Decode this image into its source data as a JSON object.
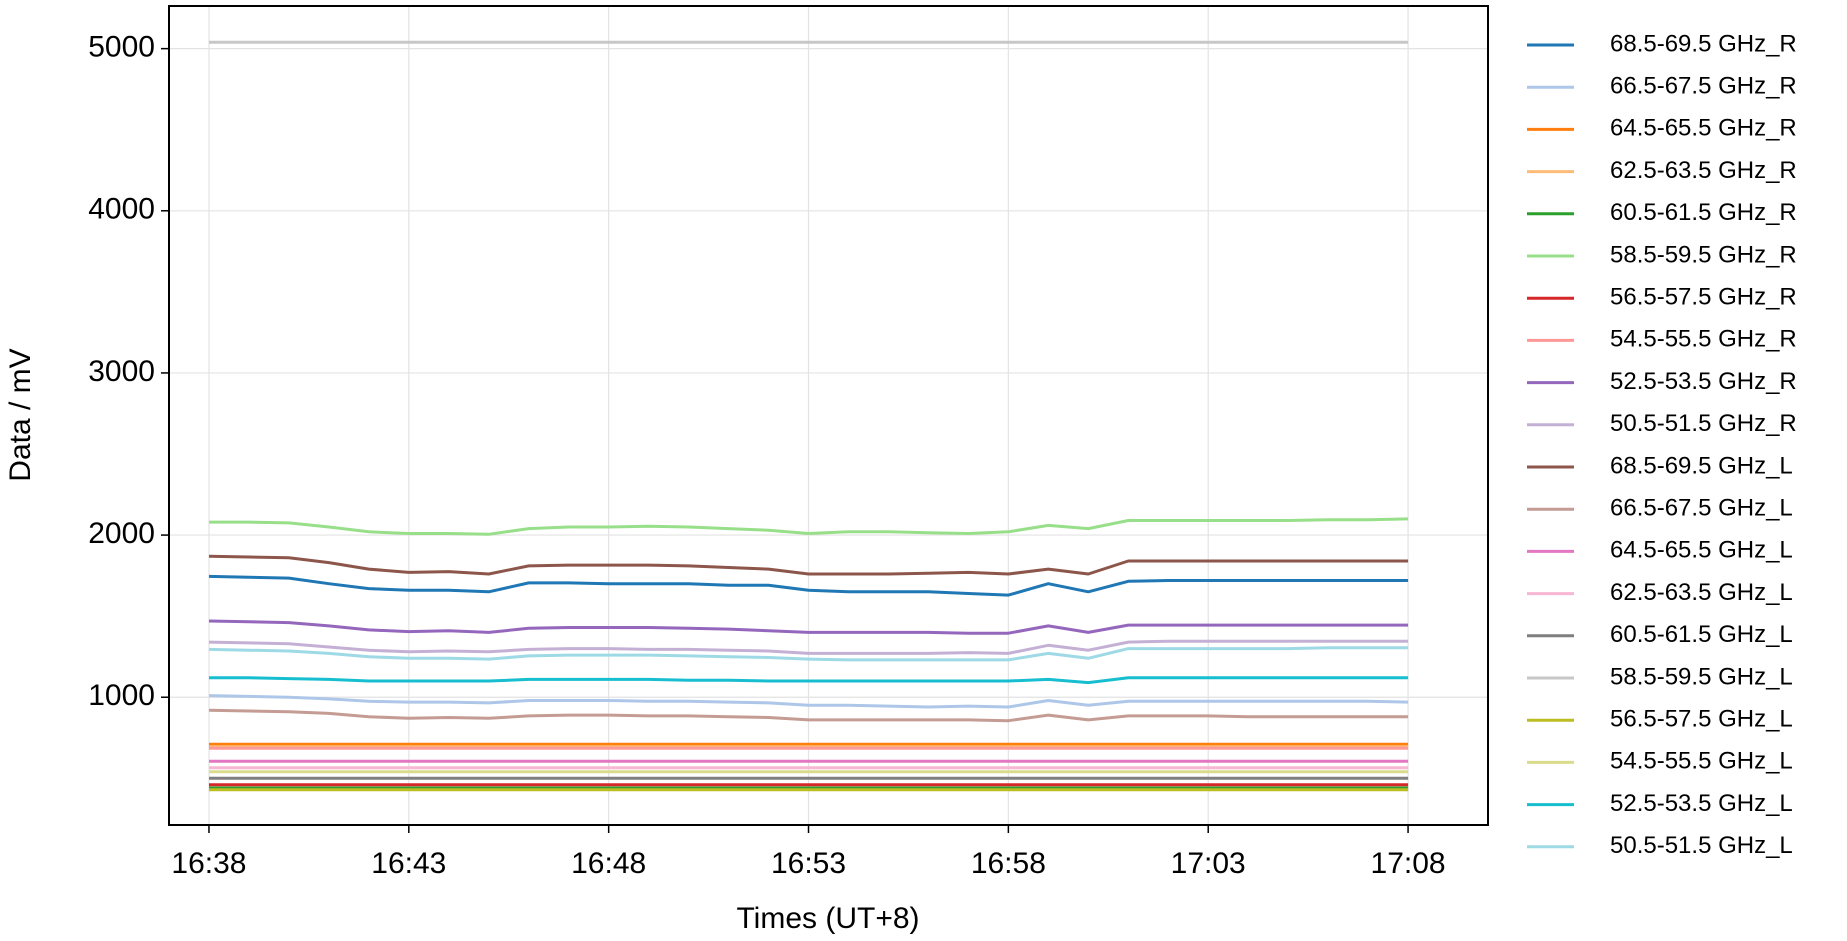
{
  "chart_data": {
    "type": "line",
    "x_label": "Times (UT+8)",
    "y_label": "Data / mV",
    "x": [
      "16:38",
      "16:39",
      "16:40",
      "16:41",
      "16:42",
      "16:43",
      "16:44",
      "16:45",
      "16:46",
      "16:47",
      "16:48",
      "16:49",
      "16:50",
      "16:51",
      "16:52",
      "16:53",
      "16:54",
      "16:55",
      "16:56",
      "16:57",
      "16:58",
      "16:59",
      "17:00",
      "17:01",
      "17:02",
      "17:03",
      "17:04",
      "17:05",
      "17:06",
      "17:07",
      "17:08"
    ],
    "xlim": [
      "16:37",
      "17:10"
    ],
    "xticks": [
      "16:38",
      "16:43",
      "16:48",
      "16:53",
      "16:58",
      "17:03",
      "17:08"
    ],
    "ylim": [
      212,
      5263
    ],
    "yticks": [
      1000,
      2000,
      3000,
      4000,
      5000
    ],
    "grid": true,
    "series": [
      {
        "name": "68.5-69.5 GHz_R",
        "color": "#1f77b4",
        "values": [
          1745,
          1740,
          1735,
          1700,
          1670,
          1660,
          1660,
          1650,
          1705,
          1705,
          1700,
          1700,
          1700,
          1690,
          1690,
          1660,
          1650,
          1650,
          1650,
          1640,
          1630,
          1700,
          1650,
          1715,
          1720,
          1720,
          1720,
          1720,
          1720,
          1720,
          1720
        ]
      },
      {
        "name": "66.5-67.5 GHz_R",
        "color": "#aec7e8",
        "values": [
          1010,
          1005,
          1000,
          990,
          975,
          970,
          970,
          965,
          980,
          980,
          980,
          975,
          975,
          970,
          965,
          950,
          950,
          945,
          940,
          945,
          940,
          980,
          950,
          975,
          975,
          975,
          975,
          975,
          975,
          975,
          970
        ]
      },
      {
        "name": "64.5-65.5 GHz_R",
        "color": "#ff7f0e",
        "values": [
          710,
          710,
          710,
          710,
          710,
          710,
          710,
          710,
          710,
          710,
          710,
          710,
          710,
          710,
          710,
          710,
          710,
          710,
          710,
          710,
          710,
          710,
          710,
          710,
          710,
          710,
          710,
          710,
          710,
          710,
          710
        ]
      },
      {
        "name": "62.5-63.5 GHz_R",
        "color": "#ffbb78",
        "values": [
          695,
          695,
          695,
          695,
          695,
          695,
          695,
          695,
          695,
          695,
          695,
          695,
          695,
          695,
          695,
          695,
          695,
          695,
          695,
          695,
          695,
          695,
          695,
          695,
          695,
          695,
          695,
          695,
          695,
          695,
          695
        ]
      },
      {
        "name": "60.5-61.5 GHz_R",
        "color": "#2ca02c",
        "values": [
          440,
          440,
          440,
          440,
          440,
          440,
          440,
          440,
          440,
          440,
          440,
          440,
          440,
          440,
          440,
          440,
          440,
          440,
          440,
          440,
          440,
          440,
          440,
          440,
          440,
          440,
          440,
          440,
          440,
          440,
          440
        ]
      },
      {
        "name": "58.5-59.5 GHz_R",
        "color": "#98df8a",
        "values": [
          2080,
          2080,
          2075,
          2050,
          2020,
          2010,
          2010,
          2005,
          2040,
          2050,
          2050,
          2055,
          2050,
          2040,
          2030,
          2010,
          2020,
          2020,
          2015,
          2010,
          2020,
          2060,
          2040,
          2090,
          2090,
          2090,
          2090,
          2090,
          2095,
          2095,
          2100
        ]
      },
      {
        "name": "56.5-57.5 GHz_R",
        "color": "#d62728",
        "values": [
          460,
          460,
          460,
          460,
          460,
          460,
          460,
          460,
          460,
          460,
          460,
          460,
          460,
          460,
          460,
          460,
          460,
          460,
          460,
          460,
          460,
          460,
          460,
          460,
          460,
          460,
          460,
          460,
          460,
          460,
          460
        ]
      },
      {
        "name": "54.5-55.5 GHz_R",
        "color": "#ff9896",
        "values": [
          685,
          685,
          685,
          685,
          685,
          685,
          685,
          685,
          685,
          685,
          685,
          685,
          685,
          685,
          685,
          685,
          685,
          685,
          685,
          685,
          685,
          685,
          685,
          685,
          685,
          685,
          685,
          685,
          685,
          685,
          685
        ]
      },
      {
        "name": "52.5-53.5 GHz_R",
        "color": "#9467bd",
        "values": [
          1470,
          1465,
          1460,
          1440,
          1415,
          1405,
          1410,
          1400,
          1425,
          1430,
          1430,
          1430,
          1425,
          1420,
          1410,
          1400,
          1400,
          1400,
          1400,
          1395,
          1395,
          1440,
          1400,
          1445,
          1445,
          1445,
          1445,
          1445,
          1445,
          1445,
          1445
        ]
      },
      {
        "name": "50.5-51.5 GHz_R",
        "color": "#c5b0d5",
        "values": [
          1340,
          1335,
          1330,
          1310,
          1290,
          1280,
          1285,
          1280,
          1295,
          1300,
          1300,
          1295,
          1295,
          1290,
          1285,
          1270,
          1270,
          1270,
          1270,
          1275,
          1270,
          1320,
          1290,
          1340,
          1345,
          1345,
          1345,
          1345,
          1345,
          1345,
          1345
        ]
      },
      {
        "name": "68.5-69.5 GHz_L",
        "color": "#8c564b",
        "values": [
          1870,
          1865,
          1860,
          1830,
          1790,
          1770,
          1775,
          1760,
          1810,
          1815,
          1815,
          1815,
          1810,
          1800,
          1790,
          1760,
          1760,
          1760,
          1765,
          1770,
          1760,
          1790,
          1760,
          1840,
          1840,
          1840,
          1840,
          1840,
          1840,
          1840,
          1840
        ]
      },
      {
        "name": "66.5-67.5 GHz_L",
        "color": "#c49c94",
        "values": [
          920,
          915,
          910,
          900,
          880,
          870,
          875,
          870,
          885,
          890,
          890,
          885,
          885,
          880,
          875,
          860,
          860,
          860,
          860,
          860,
          855,
          890,
          860,
          885,
          885,
          885,
          880,
          880,
          880,
          880,
          880
        ]
      },
      {
        "name": "64.5-65.5 GHz_L",
        "color": "#e377c2",
        "values": [
          605,
          605,
          605,
          605,
          605,
          605,
          605,
          605,
          605,
          605,
          605,
          605,
          605,
          605,
          605,
          605,
          605,
          605,
          605,
          605,
          605,
          605,
          605,
          605,
          605,
          605,
          605,
          605,
          605,
          605,
          605
        ]
      },
      {
        "name": "62.5-63.5 GHz_L",
        "color": "#f7b6d2",
        "values": [
          565,
          565,
          565,
          565,
          565,
          565,
          565,
          565,
          565,
          565,
          565,
          565,
          565,
          565,
          565,
          565,
          565,
          565,
          565,
          565,
          565,
          565,
          565,
          565,
          565,
          565,
          565,
          565,
          565,
          565,
          565
        ]
      },
      {
        "name": "60.5-61.5 GHz_L",
        "color": "#7f7f7f",
        "values": [
          500,
          500,
          500,
          500,
          500,
          500,
          500,
          500,
          500,
          500,
          500,
          500,
          500,
          500,
          500,
          500,
          500,
          500,
          500,
          500,
          500,
          500,
          500,
          500,
          500,
          500,
          500,
          500,
          500,
          500,
          500
        ]
      },
      {
        "name": "58.5-59.5 GHz_L",
        "color": "#c7c7c7",
        "values": [
          5040,
          5040,
          5040,
          5040,
          5040,
          5040,
          5040,
          5040,
          5040,
          5040,
          5040,
          5040,
          5040,
          5040,
          5040,
          5040,
          5040,
          5040,
          5040,
          5040,
          5040,
          5040,
          5040,
          5040,
          5040,
          5040,
          5040,
          5040,
          5040,
          5040,
          5040
        ]
      },
      {
        "name": "56.5-57.5 GHz_L",
        "color": "#bcbd22",
        "values": [
          430,
          430,
          430,
          430,
          430,
          430,
          430,
          430,
          430,
          430,
          430,
          430,
          430,
          430,
          430,
          430,
          430,
          430,
          430,
          430,
          430,
          430,
          430,
          430,
          430,
          430,
          430,
          430,
          430,
          430,
          430
        ]
      },
      {
        "name": "54.5-55.5 GHz_L",
        "color": "#dbdb8d",
        "values": [
          540,
          540,
          540,
          540,
          540,
          540,
          540,
          540,
          540,
          540,
          540,
          540,
          540,
          540,
          540,
          540,
          540,
          540,
          540,
          540,
          540,
          540,
          540,
          540,
          540,
          540,
          540,
          540,
          540,
          540,
          540
        ]
      },
      {
        "name": "52.5-53.5 GHz_L",
        "color": "#17becf",
        "values": [
          1120,
          1120,
          1115,
          1110,
          1100,
          1100,
          1100,
          1100,
          1110,
          1110,
          1110,
          1110,
          1105,
          1105,
          1100,
          1100,
          1100,
          1100,
          1100,
          1100,
          1100,
          1110,
          1090,
          1120,
          1120,
          1120,
          1120,
          1120,
          1120,
          1120,
          1120
        ]
      },
      {
        "name": "50.5-51.5 GHz_L",
        "color": "#9edae5",
        "values": [
          1295,
          1290,
          1285,
          1270,
          1250,
          1240,
          1240,
          1235,
          1255,
          1260,
          1260,
          1260,
          1255,
          1250,
          1245,
          1235,
          1230,
          1230,
          1230,
          1230,
          1230,
          1270,
          1240,
          1300,
          1300,
          1300,
          1300,
          1300,
          1305,
          1305,
          1305
        ]
      }
    ]
  }
}
